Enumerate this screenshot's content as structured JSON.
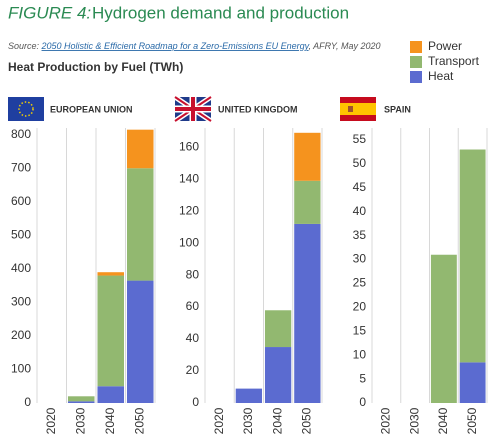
{
  "header": {
    "figure_label": "FIGURE 4:",
    "title": "Hydrogen demand and production",
    "source_prefix": "Source: ",
    "source_link": "2050 Holistic & Efficient Roadmap for a Zero-Emissions EU Energy",
    "source_suffix": ", AFRY, May 2020",
    "subtitle": "Heat Production by Fuel (TWh)"
  },
  "chart_data": [
    {
      "type": "bar",
      "stacked": true,
      "title": "EUROPEAN UNION",
      "categories": [
        "2020",
        "2030",
        "2040",
        "2050"
      ],
      "series": [
        {
          "name": "Heat",
          "color": "#5b6bd0",
          "values": [
            0,
            5,
            50,
            365
          ]
        },
        {
          "name": "Transport",
          "color": "#92b870",
          "values": [
            0,
            15,
            330,
            335
          ]
        },
        {
          "name": "Power",
          "color": "#f5931e",
          "values": [
            0,
            0,
            10,
            115
          ]
        }
      ],
      "ylim": [
        0,
        820
      ],
      "yticks": [
        0,
        100,
        200,
        300,
        400,
        500,
        600,
        700,
        800
      ],
      "grid": true
    },
    {
      "type": "bar",
      "stacked": true,
      "title": "UNITED KINGDOM",
      "categories": [
        "2020",
        "2030",
        "2040",
        "2050"
      ],
      "series": [
        {
          "name": "Heat",
          "color": "#5b6bd0",
          "values": [
            0,
            9,
            35,
            112
          ]
        },
        {
          "name": "Transport",
          "color": "#92b870",
          "values": [
            0,
            0,
            23,
            27
          ]
        },
        {
          "name": "Power",
          "color": "#f5931e",
          "values": [
            0,
            0,
            0,
            30
          ]
        }
      ],
      "ylim": [
        0,
        172
      ],
      "yticks": [
        0,
        20,
        40,
        60,
        80,
        100,
        120,
        140,
        160
      ],
      "grid": true
    },
    {
      "type": "bar",
      "stacked": true,
      "title": "SPAIN",
      "categories": [
        "2020",
        "2030",
        "2040",
        "2050"
      ],
      "series": [
        {
          "name": "Heat",
          "color": "#5b6bd0",
          "values": [
            0,
            0,
            0,
            8.5
          ]
        },
        {
          "name": "Transport",
          "color": "#92b870",
          "values": [
            0,
            0,
            31,
            44.5
          ]
        },
        {
          "name": "Power",
          "color": "#f5931e",
          "values": [
            0,
            0,
            0,
            0
          ]
        }
      ],
      "ylim": [
        0,
        57.5
      ],
      "yticks": [
        0,
        5,
        10,
        15,
        20,
        25,
        30,
        35,
        40,
        45,
        50,
        55
      ],
      "grid": true
    }
  ]
}
